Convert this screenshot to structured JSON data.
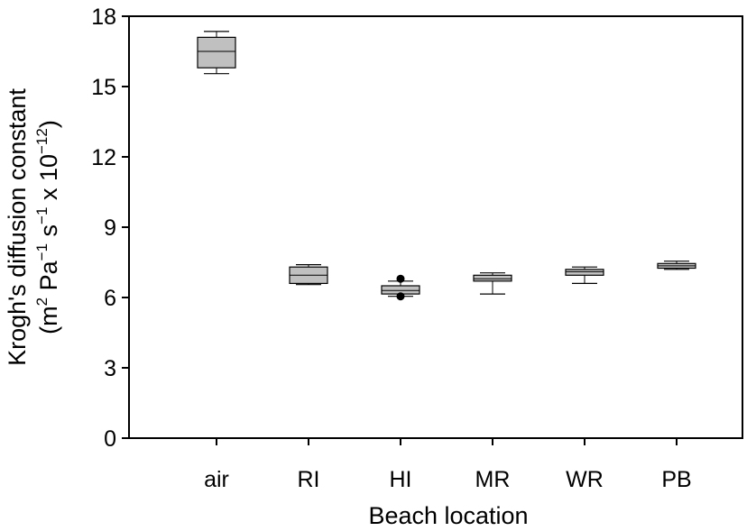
{
  "chart_data": {
    "type": "box",
    "xlabel": "Beach location",
    "ylabel_line1": "Krogh's diffusion constant",
    "ylabel_line2": {
      "open": "(m",
      "exp1": "2",
      "pa": " Pa",
      "exp2": "−1",
      "s": " s",
      "exp3": "−1",
      "x10": " x 10",
      "exp4": "−12",
      "close": ")"
    },
    "ylim": [
      0,
      18
    ],
    "yticks": [
      0,
      3,
      6,
      9,
      12,
      15,
      18
    ],
    "grid": false,
    "box_fill": "#c0c0c0",
    "categories": [
      "air",
      "RI",
      "HI",
      "MR",
      "WR",
      "PB"
    ],
    "boxes": [
      {
        "category": "air",
        "whisker_low": 15.55,
        "q1": 15.8,
        "median": 16.5,
        "q3": 17.1,
        "whisker_high": 17.35,
        "outliers": []
      },
      {
        "category": "RI",
        "whisker_low": 6.55,
        "q1": 6.6,
        "median": 6.95,
        "q3": 7.3,
        "whisker_high": 7.4,
        "outliers": []
      },
      {
        "category": "HI",
        "whisker_low": 6.05,
        "q1": 6.15,
        "median": 6.3,
        "q3": 6.5,
        "whisker_high": 6.7,
        "outliers": [
          6.05,
          6.8
        ]
      },
      {
        "category": "MR",
        "whisker_low": 6.15,
        "q1": 6.7,
        "median": 6.8,
        "q3": 6.95,
        "whisker_high": 7.05,
        "outliers": []
      },
      {
        "category": "WR",
        "whisker_low": 6.6,
        "q1": 6.95,
        "median": 7.1,
        "q3": 7.2,
        "whisker_high": 7.3,
        "outliers": []
      },
      {
        "category": "PB",
        "whisker_low": 7.2,
        "q1": 7.25,
        "median": 7.35,
        "q3": 7.45,
        "whisker_high": 7.55,
        "outliers": []
      }
    ]
  }
}
